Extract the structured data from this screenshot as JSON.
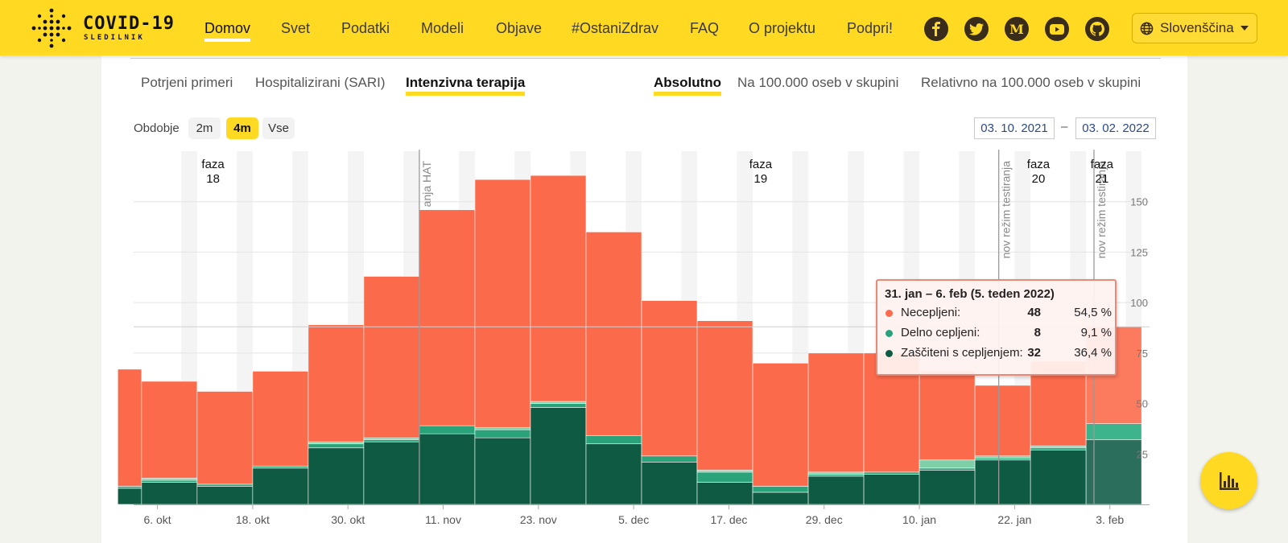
{
  "header": {
    "brand_title": "COVID-19",
    "brand_subtitle": "SLEDILNIK",
    "nav": [
      {
        "label": "Domov",
        "active": true
      },
      {
        "label": "Svet"
      },
      {
        "label": "Podatki"
      },
      {
        "label": "Modeli"
      },
      {
        "label": "Objave"
      },
      {
        "label": "#OstaniZdrav"
      },
      {
        "label": "FAQ"
      },
      {
        "label": "O projektu"
      },
      {
        "label": "Podpri!"
      }
    ],
    "social_icons": [
      "facebook-icon",
      "twitter-icon",
      "medium-icon",
      "youtube-icon",
      "github-icon"
    ],
    "language": "Slovenščina"
  },
  "tabs": {
    "metric": [
      "Potrjeni primeri",
      "Hospitalizirani (SARI)",
      "Intenzivna terapija"
    ],
    "metric_active": "Intenzivna terapija",
    "scale": [
      "Absolutno",
      "Na 100.000 oseb v skupini",
      "Relativno na 100.000 oseb v skupini"
    ],
    "scale_active": "Absolutno"
  },
  "period": {
    "label": "Obdobje",
    "options": [
      "2m",
      "4m",
      "Vse"
    ],
    "active": "4m",
    "date_from": "03. 10. 2021",
    "date_to": "03. 02. 2022",
    "separator": "–"
  },
  "colors": {
    "unvaccinated": "#fb6a4a",
    "partially": "#2aa37a",
    "fully": "#0f5a43",
    "accent": "#ffd922"
  },
  "chart_data": {
    "type": "bar",
    "stacked": true,
    "x_tick_labels": [
      "6. okt",
      "18. okt",
      "30. okt",
      "11. nov",
      "23. nov",
      "5. dec",
      "17. dec",
      "29. dec",
      "10. jan",
      "22. jan",
      "3. feb"
    ],
    "y_ticks": [
      25,
      50,
      75,
      100,
      125,
      150
    ],
    "ylim": [
      0,
      175
    ],
    "weeks": [
      "2021-10-01",
      "2021-10-04",
      "2021-10-11",
      "2021-10-18",
      "2021-10-25",
      "2021-11-01",
      "2021-11-08",
      "2021-11-15",
      "2021-11-22",
      "2021-11-29",
      "2021-12-06",
      "2021-12-13",
      "2021-12-20",
      "2021-12-27",
      "2022-01-03",
      "2022-01-10",
      "2022-01-17",
      "2022-01-24",
      "2022-01-31"
    ],
    "series": [
      {
        "name": "Zaščiteni s cepljenjem",
        "values": [
          8,
          11,
          9,
          18,
          28,
          31,
          35,
          33,
          48,
          30,
          21,
          11,
          6,
          14,
          15,
          17,
          22,
          27,
          32
        ]
      },
      {
        "name": "Delno cepljeni",
        "values": [
          1,
          1,
          1,
          1,
          2,
          1,
          4,
          4,
          2,
          4,
          3,
          5,
          3,
          1,
          1,
          1,
          1,
          1,
          8
        ]
      },
      {
        "name": "Necepljeni",
        "values": [
          58,
          48,
          46,
          47,
          58,
          80,
          107,
          123,
          112,
          101,
          77,
          74,
          61,
          59,
          59,
          44,
          35,
          42,
          48
        ]
      }
    ],
    "series_light": [
      0,
      1,
      0,
      0,
      1,
      1,
      0,
      1,
      1,
      0,
      0,
      1,
      0,
      1,
      0,
      4,
      1,
      1,
      0
    ],
    "phases": [
      {
        "label": "faza",
        "number": "18",
        "date": "2021-10-13"
      },
      {
        "label": "faza",
        "number": "19",
        "date": "2021-12-21"
      },
      {
        "label": "faza",
        "number": "20",
        "date": "2022-01-25"
      },
      {
        "label": "faza",
        "number": "21",
        "date": "2022-02-02"
      }
    ],
    "events": [
      {
        "label": "anja HAT",
        "date": "2021-11-08"
      },
      {
        "label": "nov režim testiranja",
        "date": "2022-01-20"
      },
      {
        "label": "nov režim testiranja",
        "date": "2022-02-01"
      }
    ],
    "reference_value": 88
  },
  "tooltip": {
    "title": "31. jan – 6. feb (5. teden 2022)",
    "rows": [
      {
        "label": "Necepljeni:",
        "value": "48",
        "pct": "54,5 %",
        "color": "#fb6a4a"
      },
      {
        "label": "Delno cepljeni:",
        "value": "8",
        "pct": "9,1 %",
        "color": "#2aa37a"
      },
      {
        "label": "Zaščiteni s cepljenjem:",
        "value": "32",
        "pct": "36,4 %",
        "color": "#0f5a43"
      }
    ]
  },
  "fab_icon": "bar-chart-icon"
}
